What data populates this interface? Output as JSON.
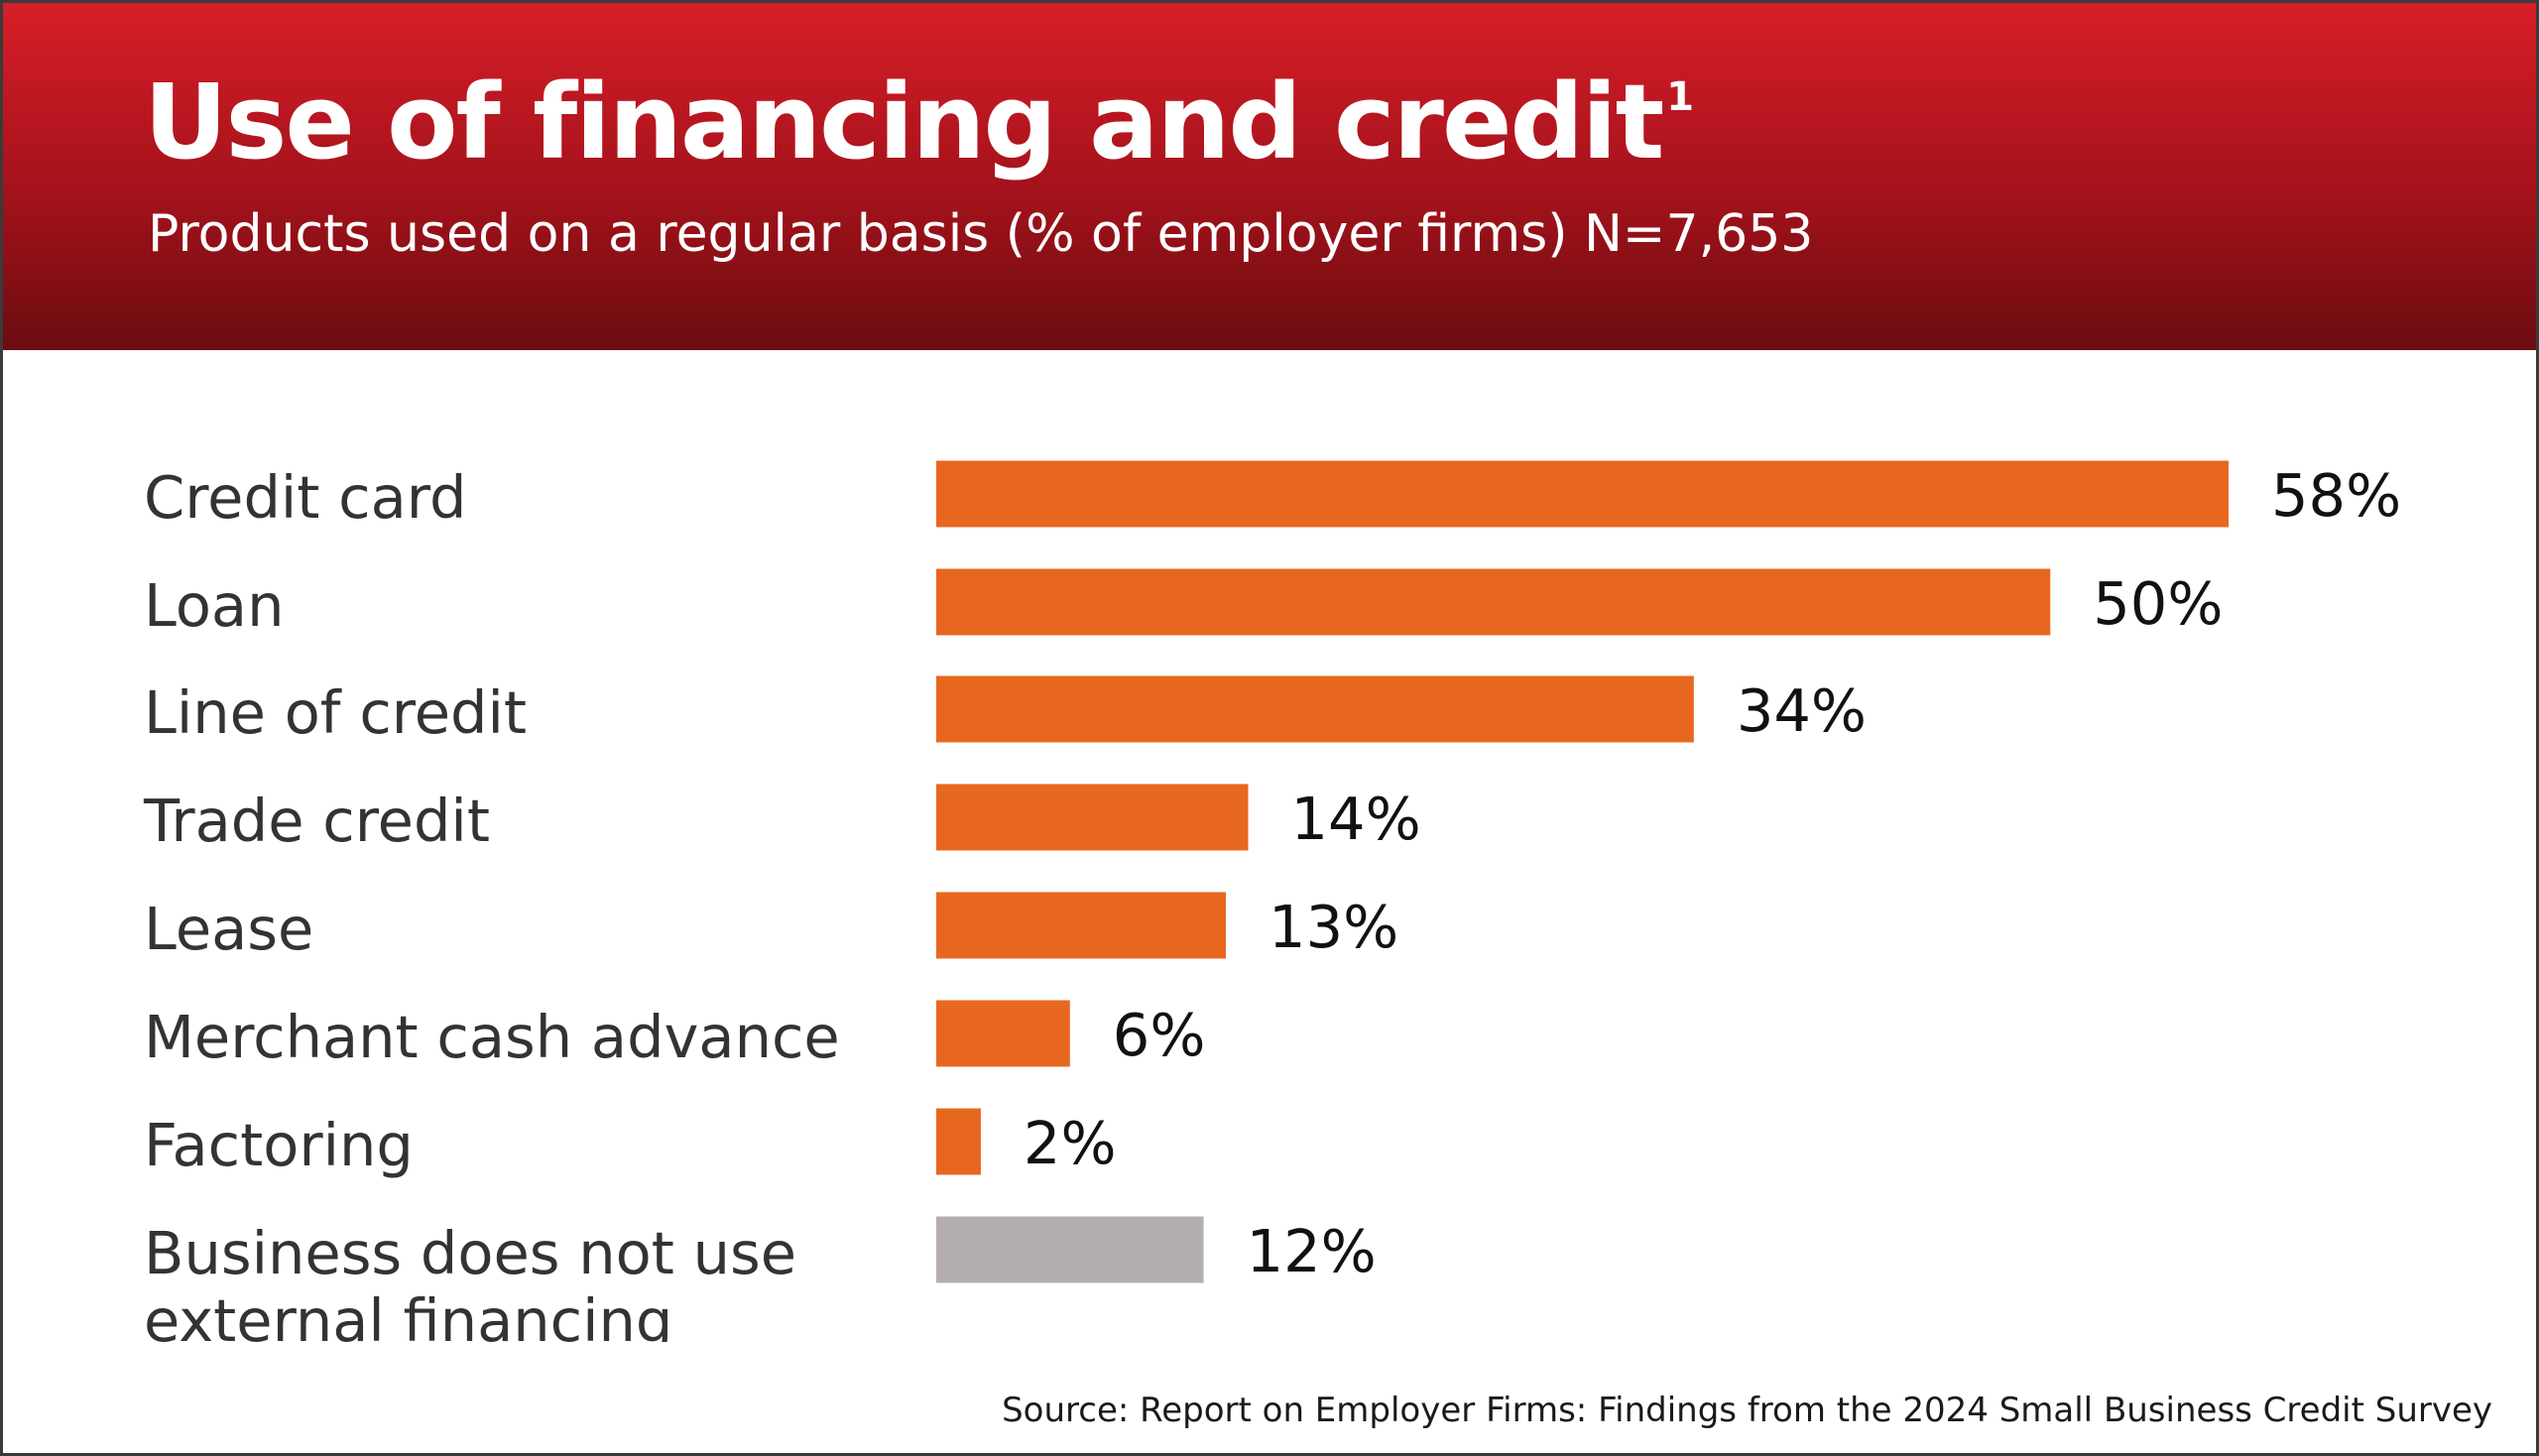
{
  "chart_data": {
    "type": "bar",
    "orientation": "horizontal",
    "title": "Use of financing and credit",
    "title_footnote": "1",
    "subtitle": "Products used on a regular basis (% of employer firms) N=7,653",
    "categories": [
      "Credit card",
      "Loan",
      "Line of credit",
      "Trade credit",
      "Lease",
      "Merchant cash advance",
      "Factoring",
      "Business does not use external financing"
    ],
    "values": [
      58,
      50,
      34,
      14,
      13,
      6,
      2,
      12
    ],
    "value_labels": [
      "58%",
      "50%",
      "34%",
      "14%",
      "13%",
      "6%",
      "2%",
      "12%"
    ],
    "bar_colors": [
      "#e8671f",
      "#e8671f",
      "#e8671f",
      "#e8671f",
      "#e8671f",
      "#e8671f",
      "#e8671f",
      "#b5aeae"
    ],
    "xlim": [
      0,
      58
    ],
    "grid": false,
    "legend": "none",
    "source": "Source: Report on Employer Firms: Findings from the 2024 Small Business Credit Survey"
  },
  "colors": {
    "header_top": "#d71e28",
    "header_bottom": "#6b0c10",
    "bar": "#e8671f",
    "bar_other": "#b5aeae"
  }
}
